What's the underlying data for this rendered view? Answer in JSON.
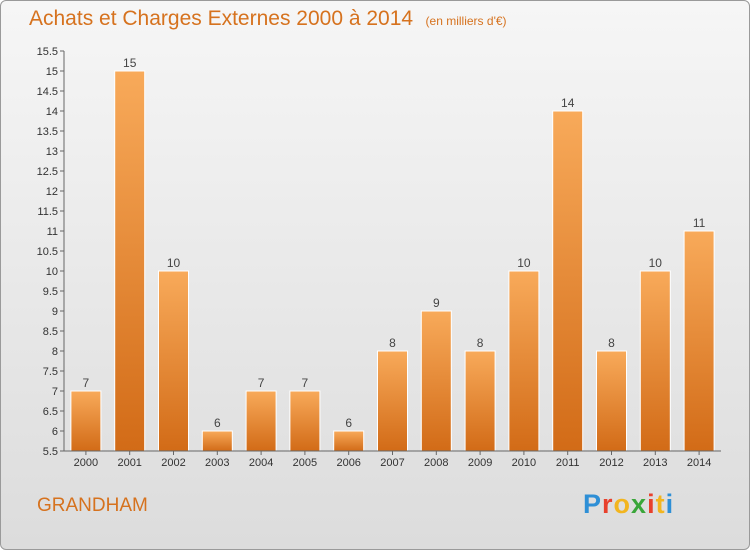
{
  "title": "Achats et Charges Externes 2000 à 2014",
  "unit": "(en milliers d'€)",
  "commune": "GRANDHAM",
  "brand": {
    "letters": [
      "P",
      "r",
      "o",
      "x",
      "i",
      "t",
      "i"
    ],
    "colors": [
      "#2e8fd6",
      "#e8402c",
      "#f2b51f",
      "#3aa63a",
      "#e8402c",
      "#f2b51f",
      "#2e8fd6"
    ]
  },
  "colors": {
    "accent": "#d6721e",
    "bar_top": "#f8aa5a",
    "bar_bottom": "#d26b17"
  },
  "chart_data": {
    "type": "bar",
    "categories": [
      "2000",
      "2001",
      "2002",
      "2003",
      "2004",
      "2005",
      "2006",
      "2007",
      "2008",
      "2009",
      "2010",
      "2011",
      "2012",
      "2013",
      "2014"
    ],
    "values": [
      7,
      15,
      10,
      6,
      7,
      7,
      6,
      8,
      9,
      8,
      10,
      14,
      8,
      10,
      11
    ],
    "ylim": [
      5.5,
      15.5
    ],
    "yticks": [
      "5.5",
      "6",
      "6.5",
      "7",
      "7.5",
      "8",
      "8.5",
      "9",
      "9.5",
      "10",
      "10.5",
      "11",
      "11.5",
      "12",
      "12.5",
      "13",
      "13.5",
      "14",
      "14.5",
      "15",
      "15.5"
    ],
    "grid": false
  }
}
